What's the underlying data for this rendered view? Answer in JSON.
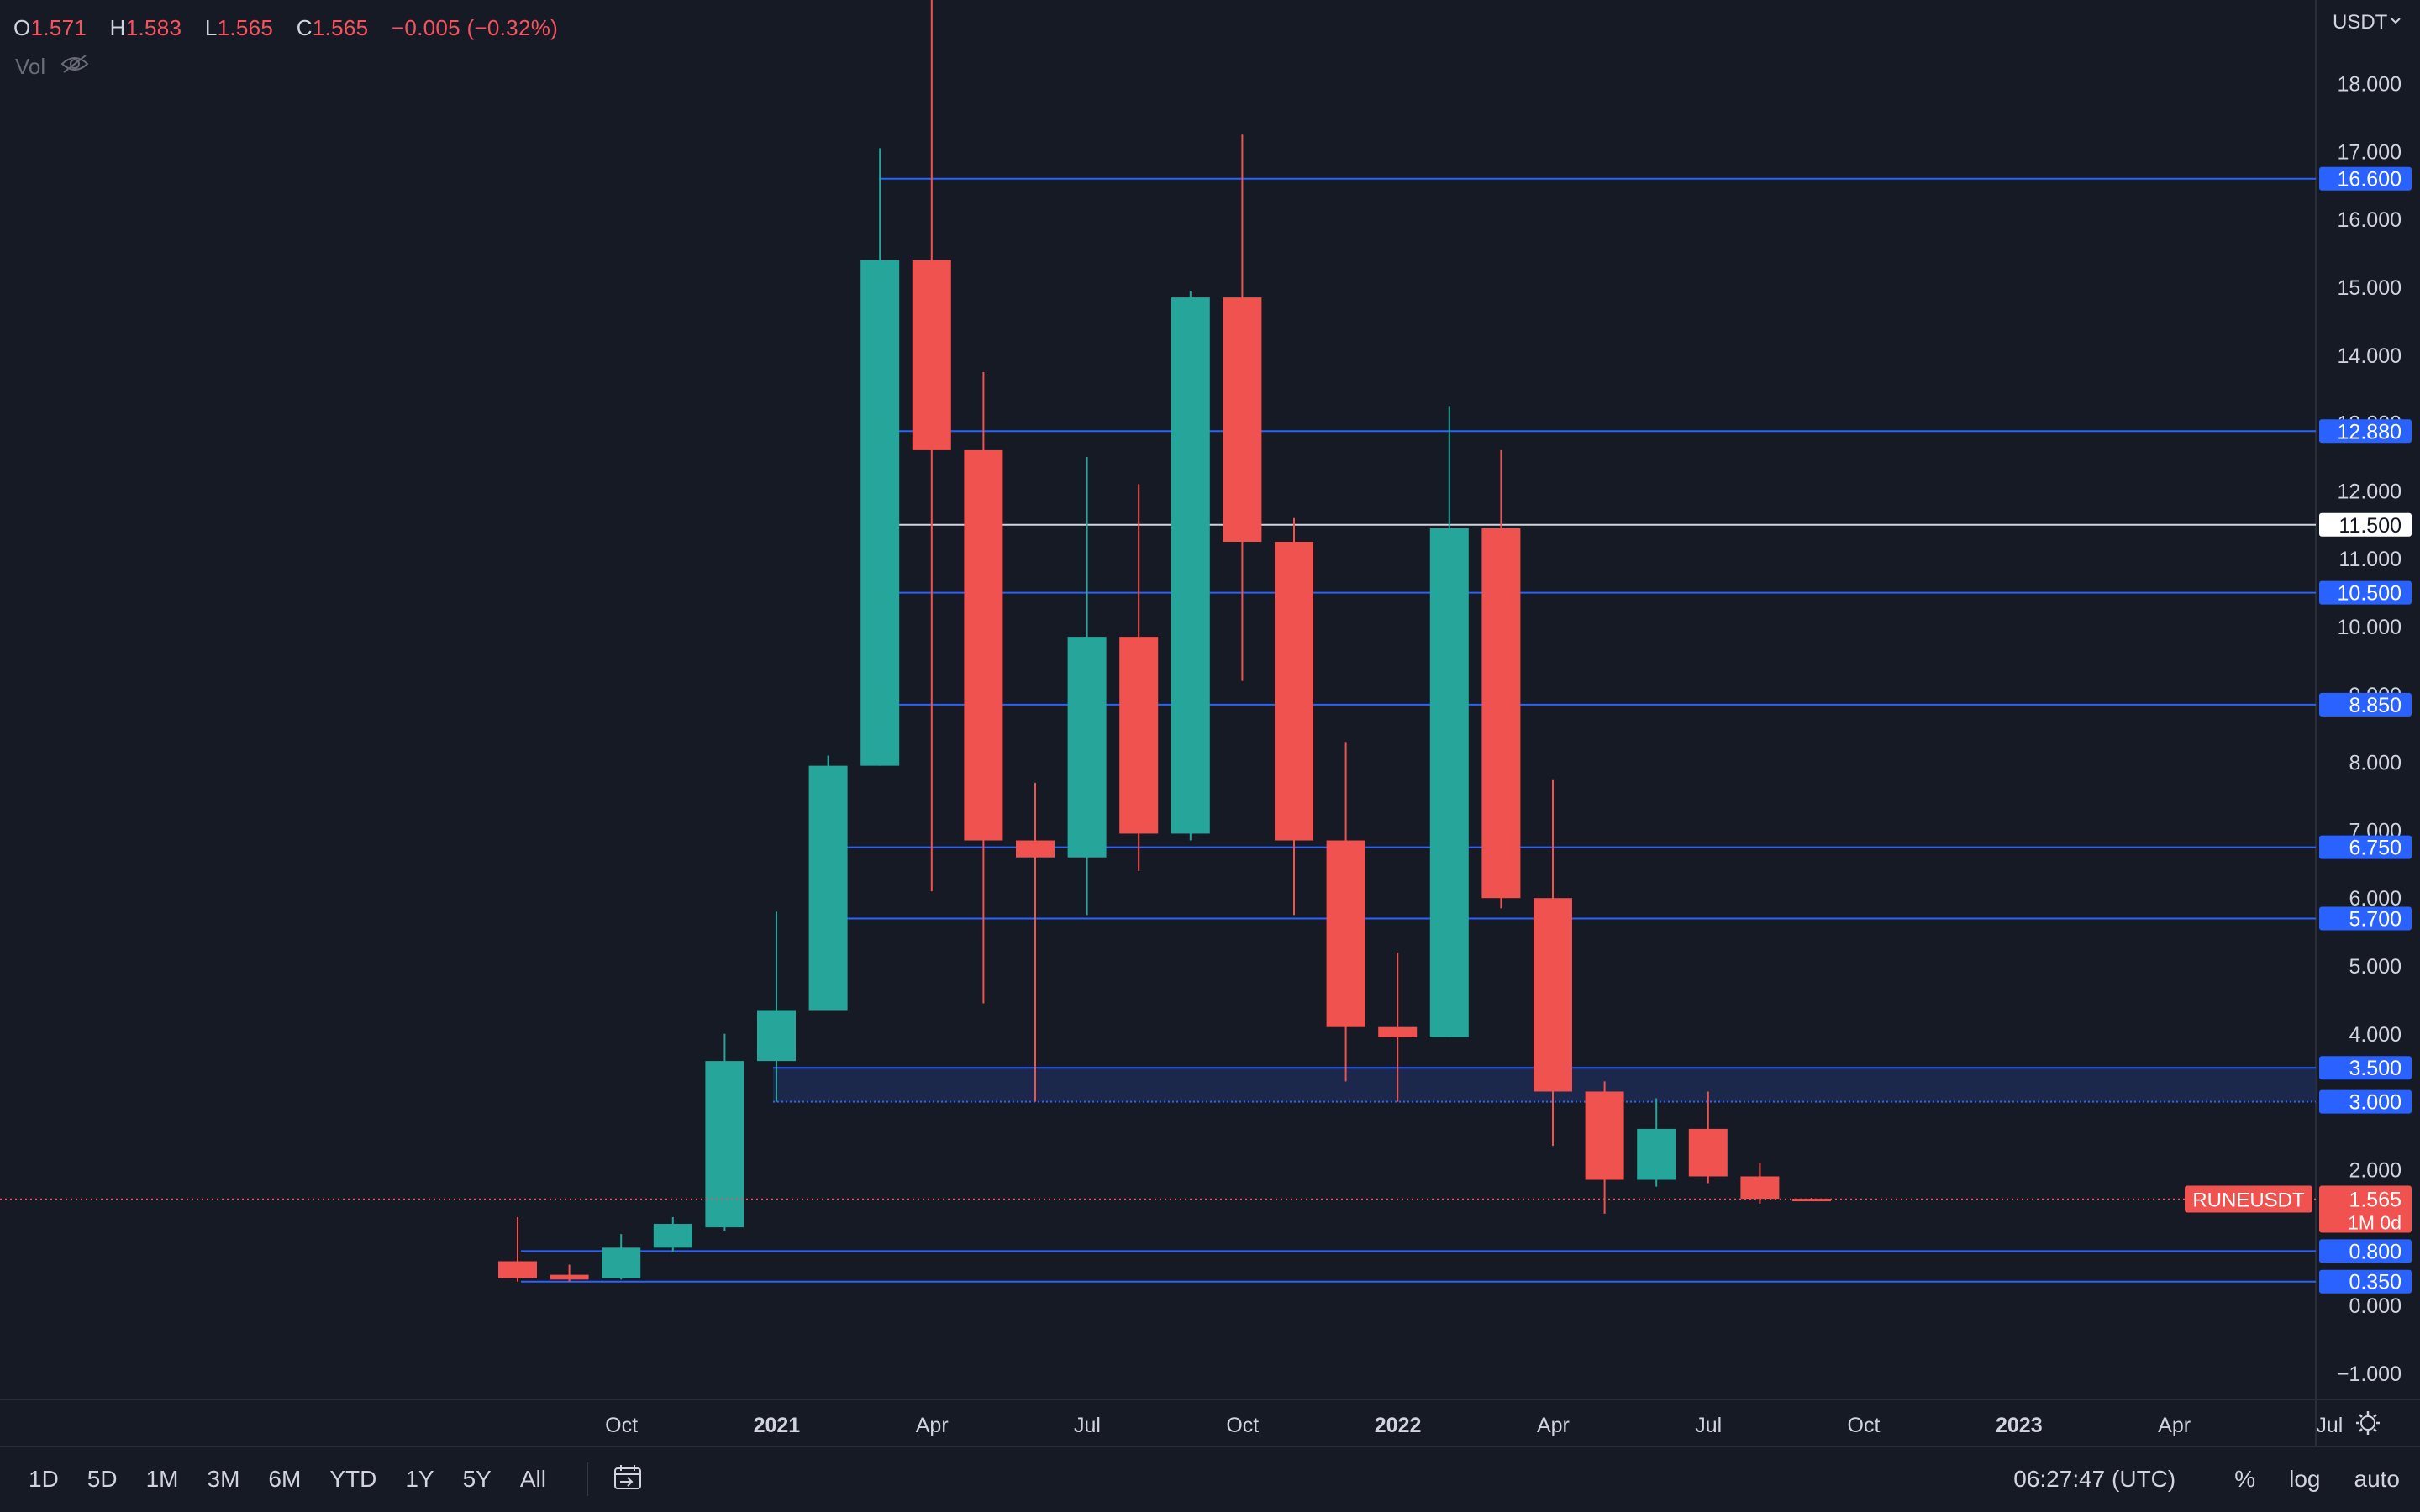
{
  "header": {
    "o_key": "O",
    "o_val": "1.571",
    "h_key": "H",
    "h_val": "1.583",
    "l_key": "L",
    "l_val": "1.565",
    "c_key": "C",
    "c_val": "1.565",
    "change": "−0.005 (−0.32%)",
    "vol_label": "Vol",
    "vol_icon": "eye-slash-icon"
  },
  "currency_label": "USDT",
  "colors": {
    "up": "#26a69a",
    "down": "#f0524f",
    "level_line": "#2962ff",
    "label_bg": "#2962ff",
    "white_level": "#ffffff",
    "zone": "#1e2d5a"
  },
  "chart_data": {
    "type": "candlestick",
    "symbol": "RUNEUSDT",
    "interval_badge": "1M 0d",
    "last_price": "1.565",
    "ylim": [
      -1.6,
      20.5
    ],
    "yticks": [
      -1.0,
      0.0,
      2.0,
      3.0,
      4.0,
      5.0,
      6.0,
      7.0,
      8.0,
      9.0,
      10.0,
      11.0,
      12.0,
      13.0,
      14.0,
      15.0,
      16.0,
      17.0,
      18.0
    ],
    "ytick_labels": [
      "−1.000",
      "0.000",
      "2.000",
      "3.000",
      "4.000",
      "5.000",
      "6.000",
      "7.000",
      "8.000",
      "9.000",
      "10.000",
      "11.000",
      "12.000",
      "13.000",
      "14.000",
      "15.000",
      "16.000",
      "17.000",
      "18.000"
    ],
    "xticks": [
      {
        "label": "Oct",
        "bold": false
      },
      {
        "label": "2021",
        "bold": true
      },
      {
        "label": "Apr",
        "bold": false
      },
      {
        "label": "Jul",
        "bold": false
      },
      {
        "label": "Oct",
        "bold": false
      },
      {
        "label": "2022",
        "bold": true
      },
      {
        "label": "Apr",
        "bold": false
      },
      {
        "label": "Jul",
        "bold": false
      },
      {
        "label": "Oct",
        "bold": false
      },
      {
        "label": "2023",
        "bold": true
      },
      {
        "label": "Apr",
        "bold": false
      },
      {
        "label": "Jul",
        "bold": false
      }
    ],
    "candles": [
      {
        "month": "2020-09",
        "o": 0.65,
        "h": 1.3,
        "l": 0.35,
        "c": 0.4
      },
      {
        "month": "2020-10",
        "o": 0.45,
        "h": 0.6,
        "l": 0.35,
        "c": 0.38
      },
      {
        "month": "2020-11",
        "o": 0.4,
        "h": 1.05,
        "l": 0.38,
        "c": 0.85
      },
      {
        "month": "2020-12",
        "o": 0.85,
        "h": 1.3,
        "l": 0.78,
        "c": 1.2
      },
      {
        "month": "2021-01",
        "o": 1.15,
        "h": 4.0,
        "l": 1.1,
        "c": 3.6
      },
      {
        "month": "2021-02",
        "o": 3.6,
        "h": 5.8,
        "l": 3.0,
        "c": 4.35
      },
      {
        "month": "2021-03",
        "o": 4.35,
        "h": 8.1,
        "l": 4.35,
        "c": 7.95
      },
      {
        "month": "2021-04",
        "o": 7.95,
        "h": 17.05,
        "l": 7.95,
        "c": 15.4
      },
      {
        "month": "2021-05",
        "o": 15.4,
        "h": 21.0,
        "l": 6.1,
        "c": 12.6
      },
      {
        "month": "2021-06",
        "o": 12.6,
        "h": 13.75,
        "l": 4.45,
        "c": 6.85
      },
      {
        "month": "2021-07",
        "o": 6.85,
        "h": 7.7,
        "l": 3.0,
        "c": 6.6
      },
      {
        "month": "2021-08",
        "o": 6.6,
        "h": 12.5,
        "l": 5.75,
        "c": 9.85
      },
      {
        "month": "2021-09",
        "o": 9.85,
        "h": 12.1,
        "l": 6.4,
        "c": 6.95
      },
      {
        "month": "2021-10",
        "o": 6.95,
        "h": 14.95,
        "l": 6.85,
        "c": 14.85
      },
      {
        "month": "2021-11",
        "o": 14.85,
        "h": 17.25,
        "l": 9.2,
        "c": 11.25
      },
      {
        "month": "2021-12",
        "o": 11.25,
        "h": 11.6,
        "l": 5.75,
        "c": 6.85
      },
      {
        "month": "2022-01",
        "o": 6.85,
        "h": 8.3,
        "l": 3.3,
        "c": 4.1
      },
      {
        "month": "2022-02",
        "o": 4.1,
        "h": 5.2,
        "l": 3.0,
        "c": 3.95
      },
      {
        "month": "2022-03",
        "o": 3.95,
        "h": 13.25,
        "l": 3.95,
        "c": 11.45
      },
      {
        "month": "2022-04",
        "o": 11.45,
        "h": 12.6,
        "l": 5.85,
        "c": 6.0
      },
      {
        "month": "2022-05",
        "o": 6.0,
        "h": 7.75,
        "l": 2.35,
        "c": 3.15
      },
      {
        "month": "2022-06",
        "o": 3.15,
        "h": 3.3,
        "l": 1.35,
        "c": 1.85
      },
      {
        "month": "2022-07",
        "o": 1.85,
        "h": 3.05,
        "l": 1.75,
        "c": 2.6
      },
      {
        "month": "2022-08",
        "o": 2.6,
        "h": 3.15,
        "l": 1.8,
        "c": 1.9
      },
      {
        "month": "2022-09",
        "o": 1.9,
        "h": 2.1,
        "l": 1.5,
        "c": 1.57
      },
      {
        "month": "2022-10",
        "o": 1.571,
        "h": 1.583,
        "l": 1.565,
        "c": 1.565
      }
    ],
    "levels": [
      {
        "value": 16.6,
        "label": "16.600",
        "style": "blue"
      },
      {
        "value": 12.88,
        "label": "12.880",
        "style": "blue"
      },
      {
        "value": 11.5,
        "label": "11.500",
        "style": "white"
      },
      {
        "value": 10.5,
        "label": "10.500",
        "style": "blue"
      },
      {
        "value": 8.85,
        "label": "8.850",
        "style": "blue"
      },
      {
        "value": 6.75,
        "label": "6.750",
        "style": "blue"
      },
      {
        "value": 5.7,
        "label": "5.700",
        "style": "blue"
      },
      {
        "value": 3.5,
        "label": "3.500",
        "style": "blue"
      },
      {
        "value": 3.0,
        "label": "3.000",
        "style": "blue"
      },
      {
        "value": 0.8,
        "label": "0.800",
        "style": "blue"
      },
      {
        "value": 0.35,
        "label": "0.350",
        "style": "blue"
      }
    ],
    "zone": {
      "from": 3.0,
      "to": 3.5
    }
  },
  "bottombar": {
    "timeframes": [
      "1D",
      "5D",
      "1M",
      "3M",
      "6M",
      "YTD",
      "1Y",
      "5Y",
      "All"
    ],
    "time": "06:27:47 (UTC)",
    "percent": "%",
    "log": "log",
    "auto": "auto"
  }
}
